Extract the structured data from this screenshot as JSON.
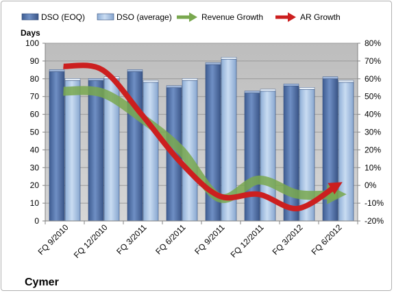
{
  "chart_data": {
    "type": "bar",
    "title": "",
    "company": "Cymer",
    "ylabel": "Days",
    "ylim": [
      0,
      100
    ],
    "yticks": [
      0,
      10,
      20,
      30,
      40,
      50,
      60,
      70,
      80,
      90,
      100
    ],
    "y2lim": [
      -20,
      80
    ],
    "y2ticks": [
      "-20%",
      "-10%",
      "0%",
      "10%",
      "20%",
      "30%",
      "40%",
      "50%",
      "60%",
      "70%",
      "80%"
    ],
    "categories": [
      "FQ 9/2010",
      "FQ 12/2010",
      "FQ 3/2011",
      "FQ 6/2011",
      "FQ 9/2011",
      "FQ 12/2011",
      "FQ 3/2012",
      "FQ 6/2012"
    ],
    "series": [
      {
        "name": "DSO (EOQ)",
        "kind": "bar",
        "color": "#4f6fa6",
        "values": [
          84,
          79,
          84,
          75,
          88,
          72,
          76,
          80
        ]
      },
      {
        "name": "DSO (average)",
        "kind": "bar",
        "color": "#a8c4e6",
        "values": [
          79,
          80,
          78,
          79,
          91,
          73,
          74,
          78
        ]
      },
      {
        "name": "Revenue Growth",
        "kind": "line",
        "axis": "secondary",
        "unit": "%",
        "color": "#79a84f",
        "values": [
          53,
          52,
          38,
          20,
          -7,
          3,
          -5,
          -5
        ]
      },
      {
        "name": "AR Growth",
        "kind": "line",
        "axis": "secondary",
        "unit": "%",
        "color": "#cc1f1f",
        "values": [
          67,
          65,
          40,
          13,
          -6,
          -5,
          -13,
          0
        ]
      }
    ],
    "grid": true,
    "legend_position": "top",
    "plot_background": "#c8c8c8"
  }
}
